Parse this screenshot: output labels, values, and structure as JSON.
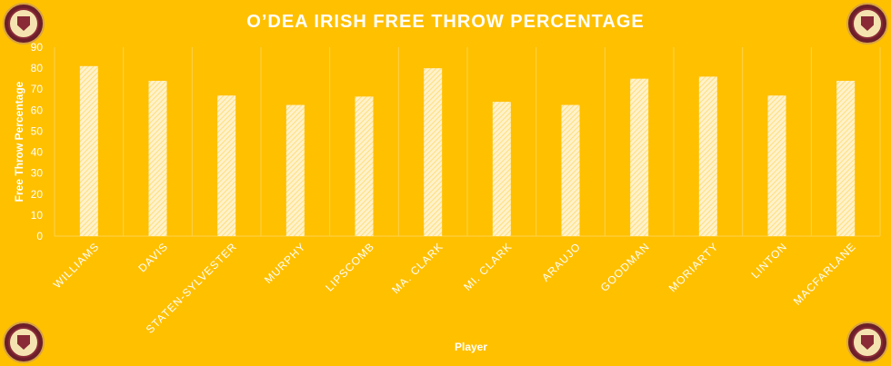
{
  "logos": {
    "top_left": "odea-high-school-logo",
    "top_right": "odea-high-school-logo",
    "bottom_left": "odea-high-school-logo",
    "bottom_right": "odea-high-school-logo"
  },
  "colors": {
    "background": "#FFC000",
    "bar_fill": "#FFF2CC",
    "bar_hatch": "#FFD966",
    "text": "#FFFFFF",
    "grid": "#FFD24D"
  },
  "chart_data": {
    "type": "bar",
    "title": "O’DEA IRISH FREE THROW PERCENTAGE",
    "xlabel": "Player",
    "ylabel": "Free Throw Percentage",
    "ylim": [
      0,
      90
    ],
    "yticks": [
      0,
      10,
      20,
      30,
      40,
      50,
      60,
      70,
      80,
      90
    ],
    "categories": [
      "WILLIAMS",
      "DAVIS",
      "STATEN-SYLVESTER",
      "MURPHY",
      "LIPSCOMB",
      "MA. CLARK",
      "MI. CLARK",
      "ARAUJO",
      "GOODMAN",
      "MORIARTY",
      "LINTON",
      "MACFARLANE"
    ],
    "values": [
      81,
      74,
      67,
      62.5,
      66.5,
      80,
      64,
      62.5,
      75,
      76,
      67,
      74
    ],
    "grid": "vertical separators",
    "legend": "none"
  }
}
